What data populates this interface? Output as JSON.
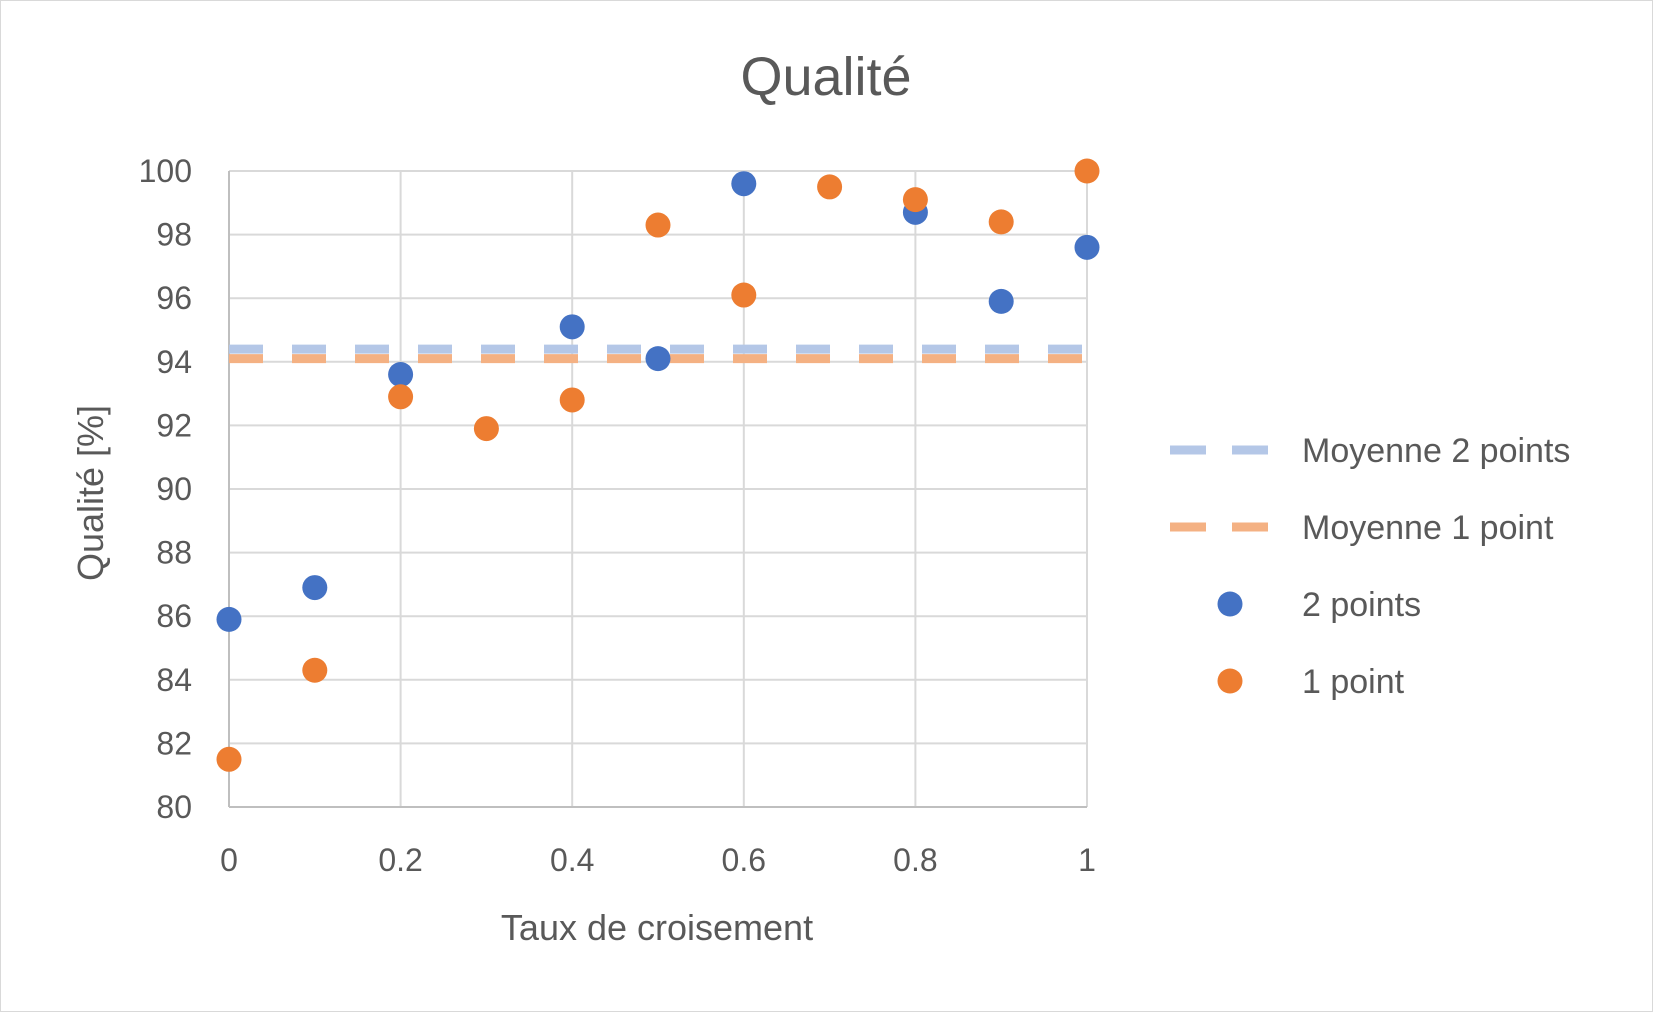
{
  "chart_data": {
    "type": "scatter",
    "title": "Qualité",
    "xlabel": "Taux de croisement",
    "ylabel": "Qualité [%]",
    "xlim": [
      0,
      1
    ],
    "ylim": [
      80,
      100
    ],
    "xticks": [
      "0",
      "0.2",
      "0.4",
      "0.6",
      "0.8",
      "1"
    ],
    "xtick_values": [
      0,
      0.2,
      0.4,
      0.6,
      0.8,
      1
    ],
    "yticks": [
      "80",
      "82",
      "84",
      "86",
      "88",
      "90",
      "92",
      "94",
      "96",
      "98",
      "100"
    ],
    "ytick_values": [
      80,
      82,
      84,
      86,
      88,
      90,
      92,
      94,
      96,
      98,
      100
    ],
    "grid": true,
    "legend_position": "right",
    "series": [
      {
        "name": "Moyenne 2 points",
        "kind": "hline",
        "style": "dashed",
        "color": "#b4c7e7",
        "y": 94.4
      },
      {
        "name": "Moyenne 1 point",
        "kind": "hline",
        "style": "dashed",
        "color": "#f4b183",
        "y": 94.1
      },
      {
        "name": "2 points",
        "kind": "scatter",
        "color": "#4472c4",
        "x": [
          0,
          0.1,
          0.2,
          0.4,
          0.5,
          0.6,
          0.8,
          0.9,
          1
        ],
        "y": [
          85.9,
          86.9,
          93.6,
          95.1,
          94.1,
          99.6,
          98.7,
          95.9,
          97.6
        ]
      },
      {
        "name": "1 point",
        "kind": "scatter",
        "color": "#ed7d31",
        "x": [
          0,
          0.1,
          0.2,
          0.3,
          0.4,
          0.5,
          0.6,
          0.7,
          0.8,
          0.9,
          1
        ],
        "y": [
          81.5,
          84.3,
          92.9,
          91.9,
          92.8,
          98.3,
          96.1,
          99.5,
          99.1,
          98.4,
          100
        ]
      }
    ]
  }
}
